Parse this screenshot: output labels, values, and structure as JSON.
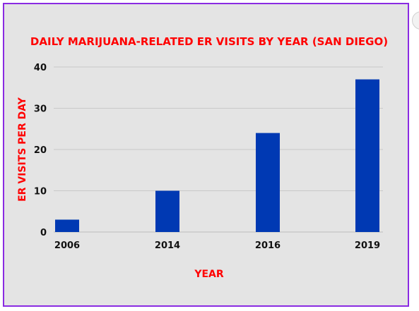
{
  "chart_data": {
    "type": "bar",
    "title": "DAILY MARIJUANA-RELATED ER VISITS BY YEAR (SAN DIEGO)",
    "xlabel": "YEAR",
    "ylabel": "ER VISITS PER DAY",
    "categories": [
      "2006",
      "2014",
      "2016",
      "2019"
    ],
    "values": [
      3,
      10,
      24,
      37
    ],
    "ylim": [
      0,
      40
    ],
    "yticks": [
      0,
      10,
      20,
      30,
      40
    ],
    "grid": true,
    "legend": "none",
    "bar_color": "#0039b3",
    "title_color": "#ff0000",
    "frame_color": "#8a2be2"
  }
}
